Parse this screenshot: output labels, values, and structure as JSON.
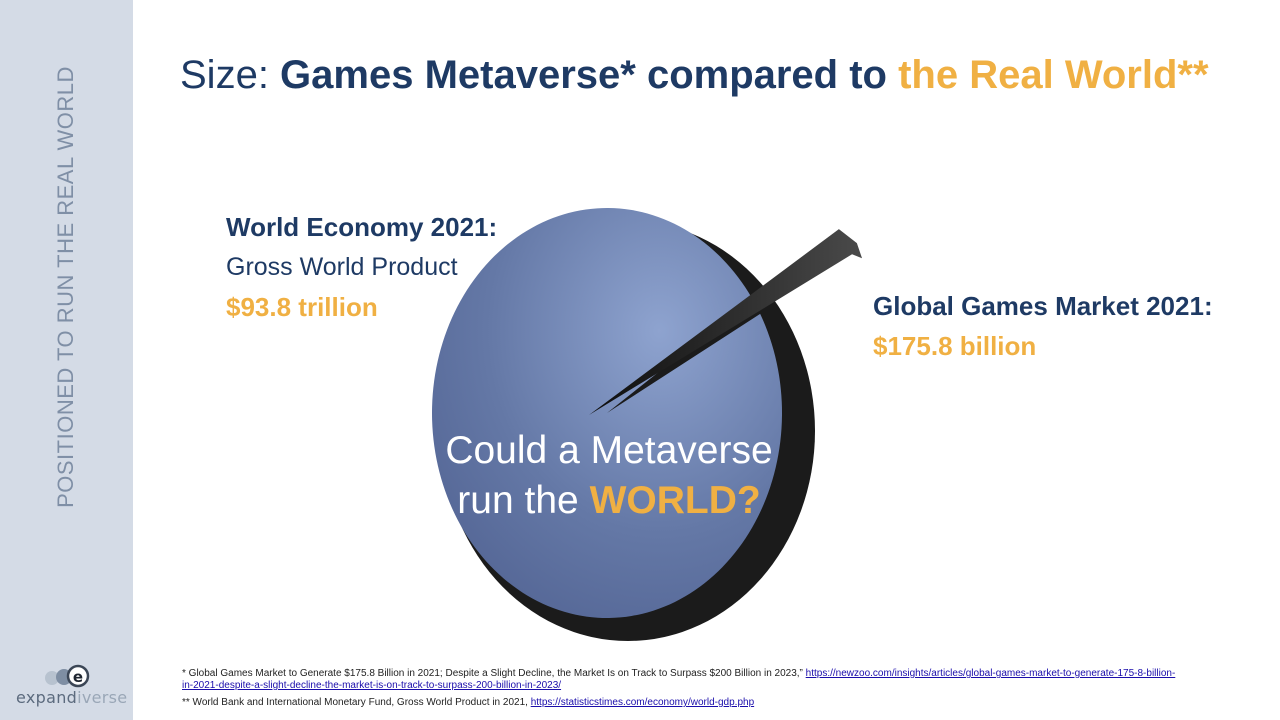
{
  "sidebar": {
    "title": "POSITIONED TO RUN THE REAL WORLD",
    "logo": {
      "prefix": "expand",
      "suffix": "iverse",
      "icon": "expandiverse-e-logo"
    }
  },
  "headline": {
    "prefix": "Size: ",
    "bold": "Games Metaverse* compared to ",
    "highlight": "the Real World**"
  },
  "chart_data": {
    "type": "pie",
    "title": "",
    "slices": [
      {
        "label": "World Economy 2021",
        "value": 93800,
        "unit": "billion USD"
      },
      {
        "label": "Global Games Market 2021",
        "value": 175.8,
        "unit": "billion USD"
      }
    ],
    "labels": {
      "world": {
        "title": "World Economy 2021:",
        "subtitle": "Gross World Product",
        "value": "$93.8 trillion"
      },
      "games": {
        "title": "Global Games Market 2021:",
        "value": "$175.8 billion"
      }
    },
    "center_text": {
      "line1": "Could a Metaverse",
      "line2_prefix": "run the ",
      "line2_highlight": "WORLD?"
    },
    "colors": {
      "world": "#6478a6",
      "games": "#1c1c1c",
      "highlight": "#f0b043",
      "title": "#1e3a64"
    }
  },
  "footnotes": {
    "note1_text": "* Global Games Market to Generate $175.8 Billion in 2021; Despite a Slight Decline, the Market Is on Track to Surpass $200 Billion in 2023,” ",
    "note1_link": "https://newzoo.com/insights/articles/global-games-market-to-generate-175-8-billion-in-2021-despite-a-slight-decline-the-market-is-on-track-to-surpass-200-billion-in-2023/",
    "note2_text": "** World Bank and International Monetary Fund, Gross World Product in 2021,  ",
    "note2_link": "https://statisticstimes.com/economy/world-gdp.php"
  }
}
